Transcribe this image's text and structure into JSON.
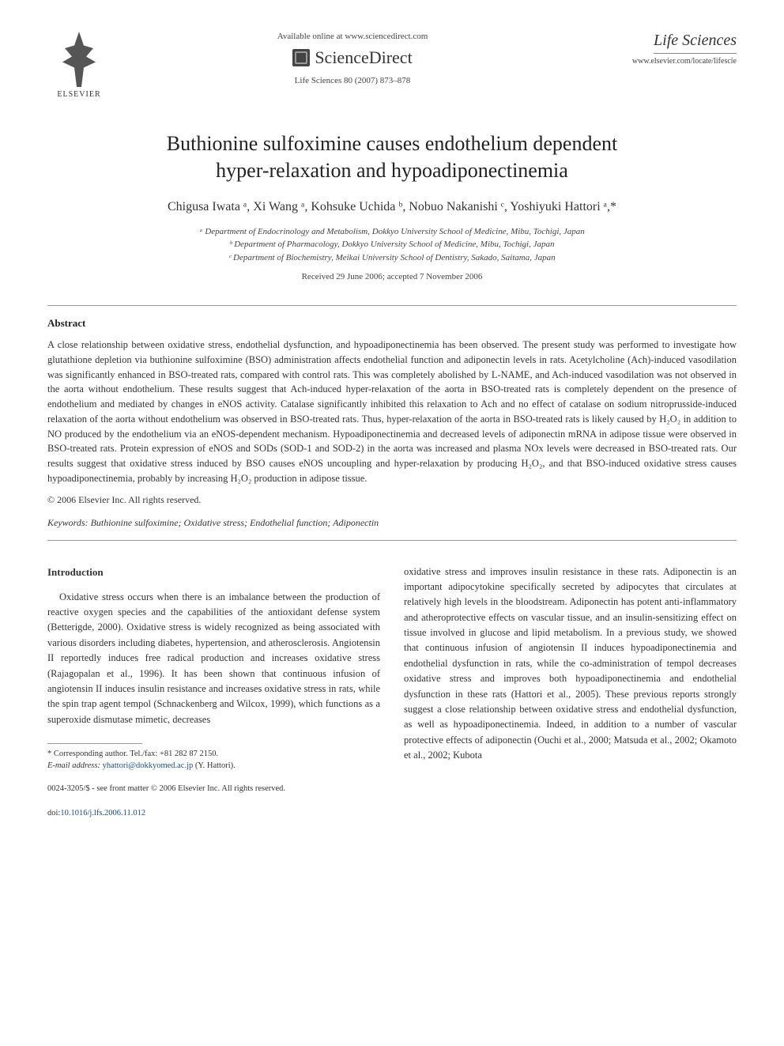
{
  "header": {
    "publisher_logo_text": "ELSEVIER",
    "available_text": "Available online at www.sciencedirect.com",
    "platform_name": "ScienceDirect",
    "citation": "Life Sciences 80 (2007) 873–878",
    "journal_name": "Life Sciences",
    "journal_url": "www.elsevier.com/locate/lifescie"
  },
  "article": {
    "title_line1": "Buthionine sulfoximine causes endothelium dependent",
    "title_line2": "hyper-relaxation and hypoadiponectinemia",
    "authors_html": "Chigusa Iwata ᵃ, Xi Wang ᵃ, Kohsuke Uchida ᵇ, Nobuo Nakanishi ᶜ, Yoshiyuki Hattori ᵃ,*",
    "affiliations": {
      "a": "ᵃ Department of Endocrinology and Metabolism, Dokkyo University School of Medicine, Mibu, Tochigi, Japan",
      "b": "ᵇ Department of Pharmacology, Dokkyo University School of Medicine, Mibu, Tochigi, Japan",
      "c": "ᶜ Department of Biochemistry, Meikai University School of Dentistry, Sakado, Saitama, Japan"
    },
    "dates": "Received 29 June 2006; accepted 7 November 2006"
  },
  "abstract": {
    "heading": "Abstract",
    "body": "A close relationship between oxidative stress, endothelial dysfunction, and hypoadiponectinemia has been observed. The present study was performed to investigate how glutathione depletion via buthionine sulfoximine (BSO) administration affects endothelial function and adiponectin levels in rats. Acetylcholine (Ach)-induced vasodilation was significantly enhanced in BSO-treated rats, compared with control rats. This was completely abolished by L-NAME, and Ach-induced vasodilation was not observed in the aorta without endothelium. These results suggest that Ach-induced hyper-relaxation of the aorta in BSO-treated rats is completely dependent on the presence of endothelium and mediated by changes in eNOS activity. Catalase significantly inhibited this relaxation to Ach and no effect of catalase on sodium nitroprusside-induced relaxation of the aorta without endothelium was observed in BSO-treated rats. Thus, hyper-relaxation of the aorta in BSO-treated rats is likely caused by H₂O₂ in addition to NO produced by the endothelium via an eNOS-dependent mechanism. Hypoadiponectinemia and decreased levels of adiponectin mRNA in adipose tissue were observed in BSO-treated rats. Protein expression of eNOS and SODs (SOD-1 and SOD-2) in the aorta was increased and plasma NOx levels were decreased in BSO-treated rats. Our results suggest that oxidative stress induced by BSO causes eNOS uncoupling and hyper-relaxation by producing H₂O₂, and that BSO-induced oxidative stress causes hypoadiponectinemia, probably by increasing H₂O₂ production in adipose tissue.",
    "copyright": "© 2006 Elsevier Inc. All rights reserved."
  },
  "keywords": {
    "label": "Keywords:",
    "text": " Buthionine sulfoximine; Oxidative stress; Endothelial function; Adiponectin"
  },
  "intro": {
    "heading": "Introduction",
    "col1": "Oxidative stress occurs when there is an imbalance between the production of reactive oxygen species and the capabilities of the antioxidant defense system (Betterigde, 2000). Oxidative stress is widely recognized as being associated with various disorders including diabetes, hypertension, and atherosclerosis. Angiotensin II reportedly induces free radical production and increases oxidative stress (Rajagopalan et al., 1996). It has been shown that continuous infusion of angiotensin II induces insulin resistance and increases oxidative stress in rats, while the spin trap agent tempol (Schnackenberg and Wilcox, 1999), which functions as a superoxide dismutase mimetic, decreases",
    "col2": "oxidative stress and improves insulin resistance in these rats. Adiponectin is an important adipocytokine specifically secreted by adipocytes that circulates at relatively high levels in the bloodstream. Adiponectin has potent anti-inflammatory and atheroprotective effects on vascular tissue, and an insulin-sensitizing effect on tissue involved in glucose and lipid metabolism. In a previous study, we showed that continuous infusion of angiotensin II induces hypoadiponectinemia and endothelial dysfunction in rats, while the co-administration of tempol decreases oxidative stress and improves both hypoadiponectinemia and endothelial dysfunction in these rats (Hattori et al., 2005). These previous reports strongly suggest a close relationship between oxidative stress and endothelial dysfunction, as well as hypoadiponectinemia. Indeed, in addition to a number of vascular protective effects of adiponectin (Ouchi et al., 2000; Matsuda et al., 2002; Okamoto et al., 2002; Kubota"
  },
  "footnote": {
    "corr": "* Corresponding author. Tel./fax: +81 282 87 2150.",
    "email_label": "E-mail address:",
    "email": " yhattori@dokkyomed.ac.jp",
    "email_who": " (Y. Hattori)."
  },
  "footer": {
    "front_matter": "0024-3205/$ - see front matter © 2006 Elsevier Inc. All rights reserved.",
    "doi_label": "doi:",
    "doi": "10.1016/j.lfs.2006.11.012"
  },
  "colors": {
    "text": "#333333",
    "link": "#1a4b8c",
    "rule": "#999999",
    "background": "#ffffff"
  },
  "typography": {
    "title_fontsize": 26,
    "author_fontsize": 16,
    "body_fontsize": 12.5,
    "affiliation_fontsize": 11,
    "footnote_fontsize": 10.5
  }
}
